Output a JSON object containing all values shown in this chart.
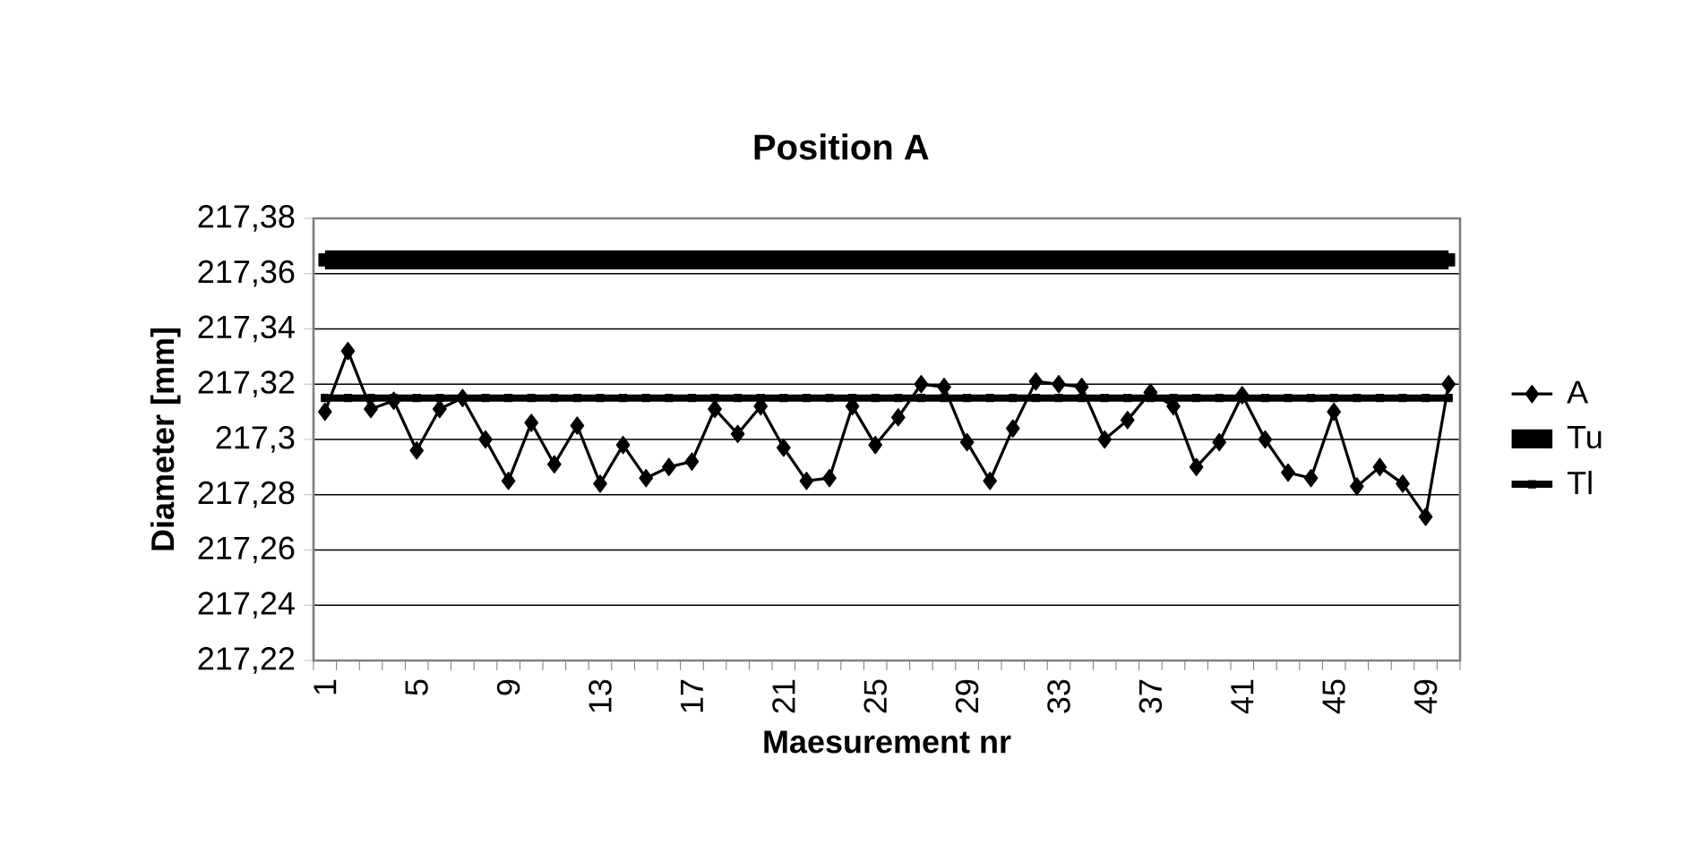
{
  "chart_data": {
    "type": "line",
    "title": "Position A",
    "xlabel": "Maesurement nr",
    "ylabel": "Diameter [mm]",
    "categories": [
      "1",
      null,
      null,
      null,
      "5",
      null,
      null,
      null,
      "9",
      null,
      null,
      null,
      "13",
      null,
      null,
      null,
      "17",
      null,
      null,
      null,
      "21",
      null,
      null,
      null,
      "25",
      null,
      null,
      null,
      "29",
      null,
      null,
      null,
      "33",
      null,
      null,
      null,
      "37",
      null,
      null,
      null,
      "41",
      null,
      null,
      null,
      "45",
      null,
      null,
      null,
      "49",
      null
    ],
    "series": [
      {
        "name": "A",
        "color": "#000000",
        "marker": "diamond",
        "values": [
          217.31,
          217.332,
          217.311,
          217.314,
          217.296,
          217.311,
          217.315,
          217.3,
          217.285,
          217.306,
          217.291,
          217.305,
          217.284,
          217.298,
          217.286,
          217.29,
          217.292,
          217.311,
          217.302,
          217.312,
          217.297,
          217.285,
          217.286,
          217.312,
          217.298,
          217.308,
          217.32,
          217.319,
          217.299,
          217.285,
          217.304,
          217.321,
          217.32,
          217.319,
          217.3,
          217.307,
          217.317,
          217.312,
          217.29,
          217.299,
          217.316,
          217.3,
          217.288,
          217.286,
          217.31,
          217.283,
          217.29,
          217.284,
          217.272,
          217.32
        ]
      },
      {
        "name": "Tu",
        "color": "#000000",
        "marker": "square",
        "values": [
          217.365,
          217.365,
          217.365,
          217.365,
          217.365,
          217.365,
          217.365,
          217.365,
          217.365,
          217.365,
          217.365,
          217.365,
          217.365,
          217.365,
          217.365,
          217.365,
          217.365,
          217.365,
          217.365,
          217.365,
          217.365,
          217.365,
          217.365,
          217.365,
          217.365,
          217.365,
          217.365,
          217.365,
          217.365,
          217.365,
          217.365,
          217.365,
          217.365,
          217.365,
          217.365,
          217.365,
          217.365,
          217.365,
          217.365,
          217.365,
          217.365,
          217.365,
          217.365,
          217.365,
          217.365,
          217.365,
          217.365,
          217.365,
          217.365,
          217.365
        ]
      },
      {
        "name": "Tl",
        "color": "#000000",
        "marker": "square",
        "values": [
          217.315,
          217.315,
          217.315,
          217.315,
          217.315,
          217.315,
          217.315,
          217.315,
          217.315,
          217.315,
          217.315,
          217.315,
          217.315,
          217.315,
          217.315,
          217.315,
          217.315,
          217.315,
          217.315,
          217.315,
          217.315,
          217.315,
          217.315,
          217.315,
          217.315,
          217.315,
          217.315,
          217.315,
          217.315,
          217.315,
          217.315,
          217.315,
          217.315,
          217.315,
          217.315,
          217.315,
          217.315,
          217.315,
          217.315,
          217.315,
          217.315,
          217.315,
          217.315,
          217.315,
          217.315,
          217.315,
          217.315,
          217.315,
          217.315,
          217.315
        ]
      }
    ],
    "ylim": [
      217.22,
      217.38
    ],
    "yticks": [
      {
        "value": 217.22,
        "label": "217,22"
      },
      {
        "value": 217.24,
        "label": "217,24"
      },
      {
        "value": 217.26,
        "label": "217,26"
      },
      {
        "value": 217.28,
        "label": "217,28"
      },
      {
        "value": 217.3,
        "label": "217,3"
      },
      {
        "value": 217.32,
        "label": "217,32"
      },
      {
        "value": 217.34,
        "label": "217,34"
      },
      {
        "value": 217.36,
        "label": "217,36"
      },
      {
        "value": 217.38,
        "label": "217,38"
      }
    ],
    "grid": "y",
    "legend": "right"
  }
}
